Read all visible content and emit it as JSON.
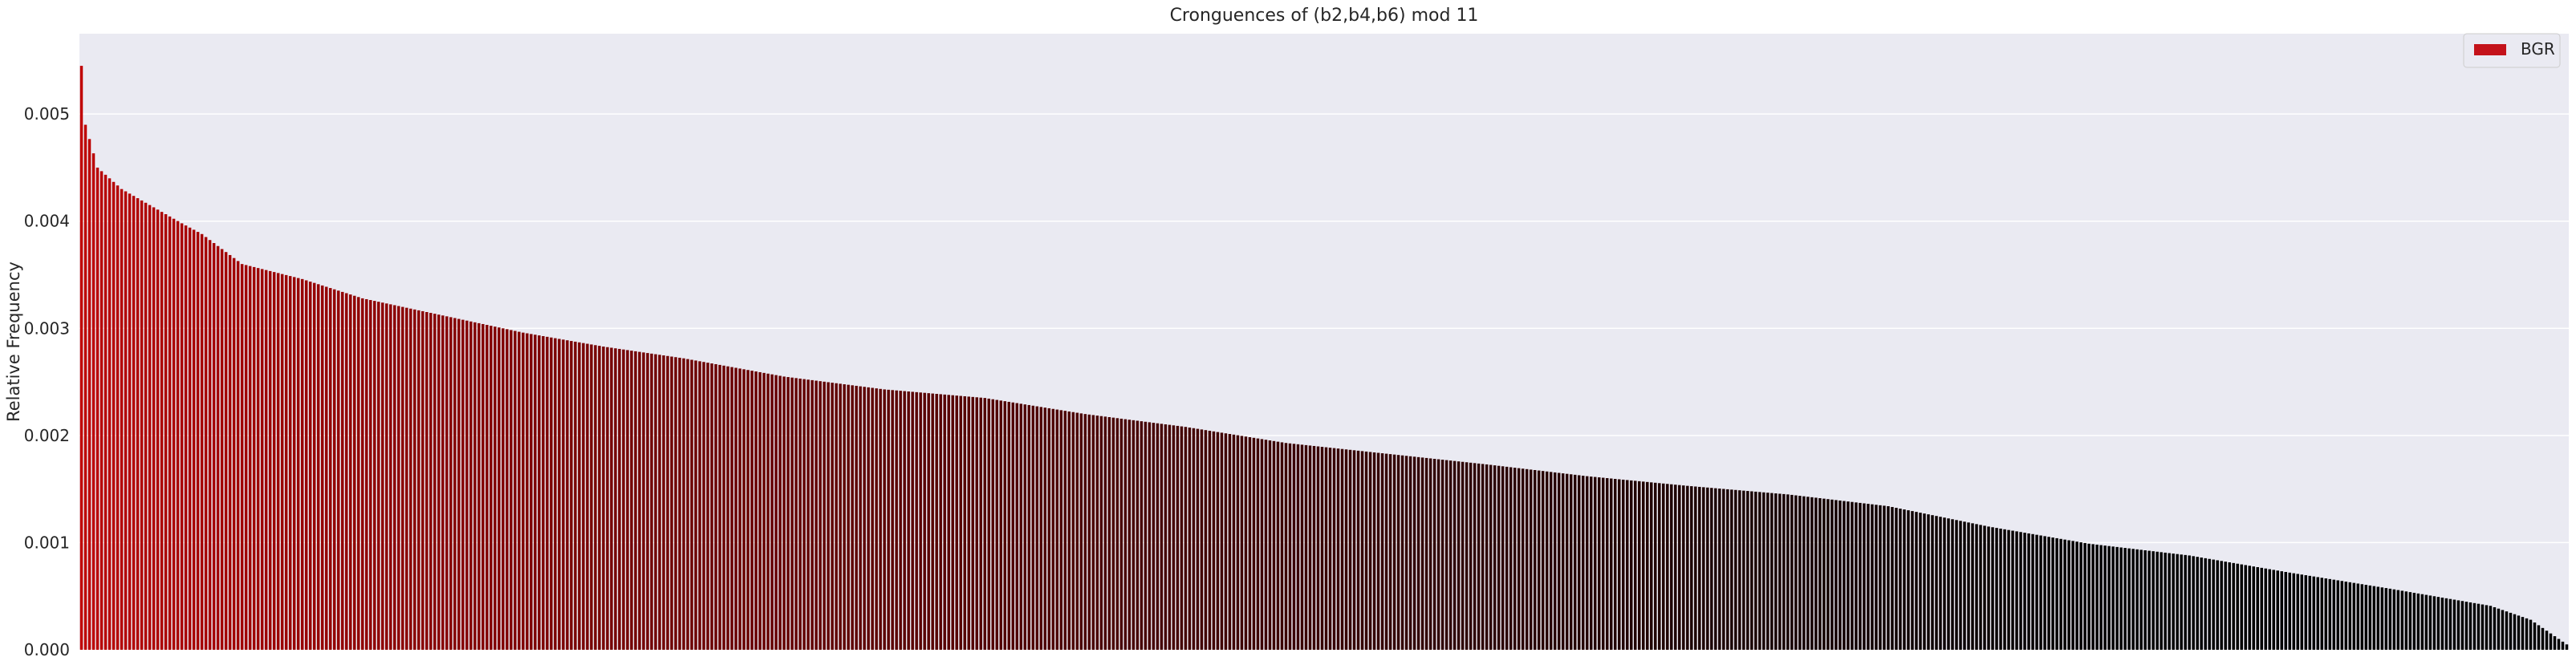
{
  "chart_data": {
    "type": "bar",
    "title": "Cronguences of (b2,b4,b6) mod 11",
    "xlabel": "",
    "ylabel": "Relative Frequency",
    "ylim": [
      0,
      0.00575
    ],
    "yticks": [
      "0.000",
      "0.001",
      "0.002",
      "0.003",
      "0.004",
      "0.005"
    ],
    "x_tick_labels_shown": false,
    "grid": true,
    "legend_position": "top-right",
    "bar_count": 620,
    "bar_color_gradient": [
      "#c00000",
      "#000000"
    ],
    "series": [
      {
        "name": "BGR",
        "color": "#c4121a",
        "shape": {
          "sorted": "descending",
          "anchors_rank": [
            0,
            1,
            4,
            10,
            25,
            30,
            40,
            55,
            70,
            90,
            110,
            130,
            150,
            175,
            200,
            225,
            250,
            275,
            300,
            325,
            350,
            375,
            400,
            425,
            450,
            475,
            500,
            525,
            550,
            575,
            600,
            610,
            619
          ],
          "anchors_value": [
            0.00545,
            0.0049,
            0.0045,
            0.0043,
            0.00398,
            0.00388,
            0.0036,
            0.00346,
            0.00328,
            0.00312,
            0.00296,
            0.00283,
            0.00272,
            0.00255,
            0.00243,
            0.00235,
            0.0022,
            0.00208,
            0.00193,
            0.00183,
            0.00173,
            0.00162,
            0.00153,
            0.00145,
            0.00134,
            0.00115,
            0.00099,
            0.00088,
            0.00072,
            0.00057,
            0.00041,
            0.00028,
            5e-05
          ]
        }
      }
    ]
  }
}
